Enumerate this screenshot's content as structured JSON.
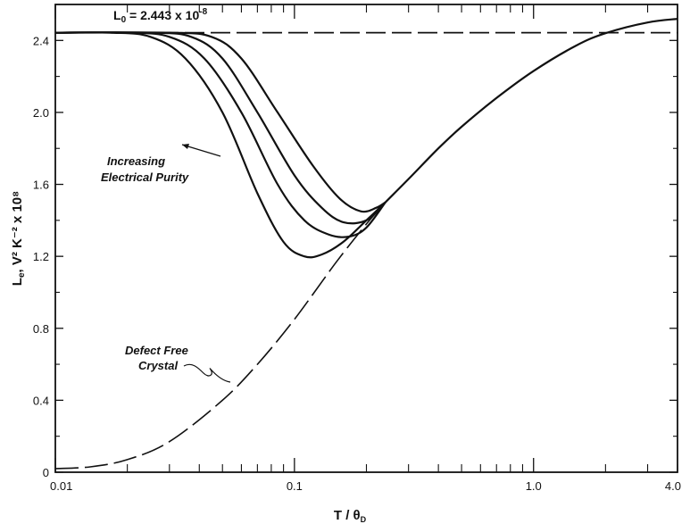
{
  "chart_data": {
    "type": "line",
    "xlabel": "T / θ",
    "xlabel_sub": "D",
    "ylabel": "L",
    "ylabel_sub": "e",
    "ylabel_rest": ", V² K⁻² x 10⁸",
    "x_scale": "log",
    "xlim": [
      0.01,
      4.0
    ],
    "ylim": [
      0,
      2.6
    ],
    "x_ticks": [
      0.01,
      0.1,
      1.0,
      4.0
    ],
    "x_tick_labels": [
      "0.01",
      "0.1",
      "1.0",
      "4.0"
    ],
    "y_ticks": [
      0,
      0.4,
      0.8,
      1.2,
      1.6,
      2.0,
      2.4
    ],
    "y_tick_labels": [
      "0",
      "0.4",
      "0.8",
      "1.2",
      "1.6",
      "2.0",
      "2.4"
    ],
    "grid": false,
    "series": [
      {
        "style": "dashed",
        "x": [
          0.01,
          4.0
        ],
        "y": [
          2.443,
          2.443
        ]
      },
      {
        "style": "solid",
        "x": [
          0.01,
          0.017,
          0.025,
          0.035,
          0.05,
          0.07,
          0.09,
          0.11,
          0.13,
          0.16,
          0.2,
          0.24
        ],
        "y": [
          2.443,
          2.443,
          2.42,
          2.3,
          2.0,
          1.55,
          1.28,
          1.2,
          1.21,
          1.28,
          1.4,
          1.5
        ]
      },
      {
        "style": "solid",
        "x": [
          0.01,
          0.02,
          0.03,
          0.042,
          0.06,
          0.085,
          0.11,
          0.14,
          0.17,
          0.2,
          0.24
        ],
        "y": [
          2.443,
          2.443,
          2.42,
          2.3,
          2.0,
          1.6,
          1.4,
          1.32,
          1.31,
          1.36,
          1.5
        ]
      },
      {
        "style": "solid",
        "x": [
          0.01,
          0.025,
          0.037,
          0.05,
          0.07,
          0.1,
          0.13,
          0.16,
          0.2,
          0.24
        ],
        "y": [
          2.443,
          2.443,
          2.42,
          2.3,
          2.0,
          1.65,
          1.47,
          1.39,
          1.4,
          1.5
        ]
      },
      {
        "style": "solid",
        "x": [
          0.01,
          0.03,
          0.045,
          0.06,
          0.085,
          0.12,
          0.155,
          0.19,
          0.22,
          0.24
        ],
        "y": [
          2.443,
          2.443,
          2.42,
          2.3,
          2.0,
          1.7,
          1.52,
          1.45,
          1.47,
          1.5
        ]
      },
      {
        "style": "long-dash",
        "x": [
          0.01,
          0.014,
          0.02,
          0.03,
          0.05,
          0.07,
          0.1,
          0.15,
          0.2,
          0.24
        ],
        "y": [
          0.02,
          0.03,
          0.07,
          0.17,
          0.4,
          0.6,
          0.85,
          1.17,
          1.38,
          1.5
        ]
      },
      {
        "style": "solid",
        "x": [
          0.24,
          0.3,
          0.4,
          0.5,
          0.7,
          1.0,
          1.5,
          2.0,
          3.0,
          4.0
        ],
        "y": [
          1.5,
          1.63,
          1.8,
          1.92,
          2.08,
          2.23,
          2.37,
          2.44,
          2.5,
          2.52
        ]
      }
    ],
    "annotations": {
      "l0_prefix": "L",
      "l0_sub": "0",
      "l0_eq": " = 2.443 x 10",
      "l0_exp": "-8",
      "purity_line1": "Increasing",
      "purity_line2": "Electrical Purity",
      "defect_line1": "Defect Free",
      "defect_line2": "Crystal"
    }
  }
}
